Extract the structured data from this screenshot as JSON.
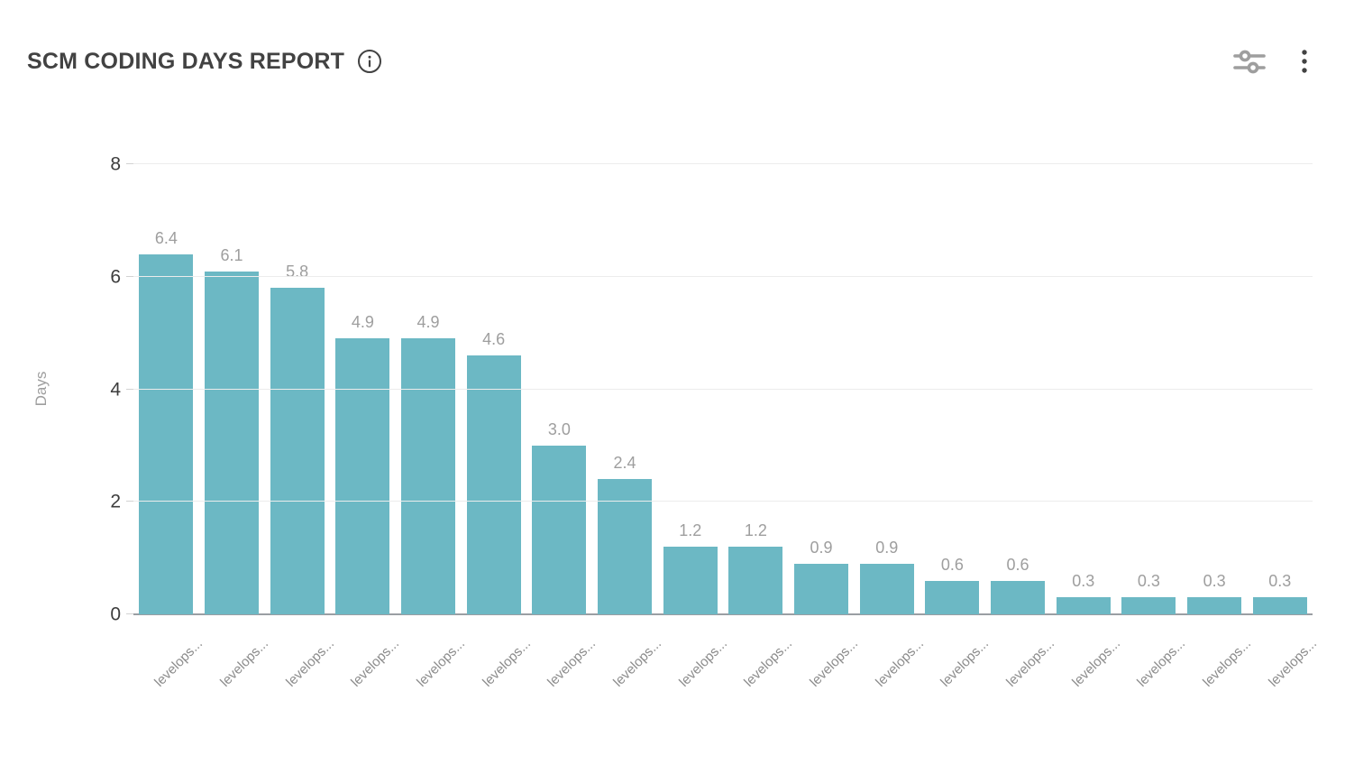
{
  "header": {
    "title": "SCM CODING DAYS REPORT",
    "icons": {
      "info": "info-circle-icon",
      "filter": "sliders-icon",
      "menu": "kebab-menu-icon"
    }
  },
  "chart_data": {
    "type": "bar",
    "title": "SCM CODING DAYS REPORT",
    "xlabel": "",
    "ylabel": "Days",
    "ylim": [
      0,
      8
    ],
    "yticks": [
      0,
      2,
      4,
      6,
      8
    ],
    "grid": true,
    "legend": "none",
    "bar_color": "#6cb8c4",
    "categories": [
      "levelops...",
      "levelops...",
      "levelops...",
      "levelops...",
      "levelops...",
      "levelops...",
      "levelops...",
      "levelops...",
      "levelops...",
      "levelops...",
      "levelops...",
      "levelops...",
      "levelops...",
      "levelops...",
      "levelops...",
      "levelops...",
      "levelops...",
      "levelops..."
    ],
    "values": [
      6.4,
      6.1,
      5.8,
      4.9,
      4.9,
      4.6,
      3.0,
      2.4,
      1.2,
      1.2,
      0.9,
      0.9,
      0.6,
      0.6,
      0.3,
      0.3,
      0.3,
      0.3
    ],
    "value_labels": [
      "6.4",
      "6.1",
      "5.8",
      "4.9",
      "4.9",
      "4.6",
      "3.0",
      "2.4",
      "1.2",
      "1.2",
      "0.9",
      "0.9",
      "0.6",
      "0.6",
      "0.3",
      "0.3",
      "0.3",
      "0.3"
    ]
  }
}
